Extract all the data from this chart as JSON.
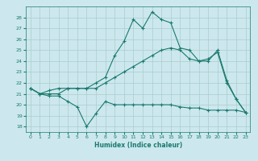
{
  "xlabel": "Humidex (Indice chaleur)",
  "background_color": "#cce8ee",
  "grid_color": "#aacccc",
  "line_color": "#1a7a6e",
  "xlim": [
    -0.5,
    23.5
  ],
  "ylim": [
    17.5,
    29.0
  ],
  "yticks": [
    18,
    19,
    20,
    21,
    22,
    23,
    24,
    25,
    26,
    27,
    28
  ],
  "xticks": [
    0,
    1,
    2,
    3,
    4,
    5,
    6,
    7,
    8,
    9,
    10,
    11,
    12,
    13,
    14,
    15,
    16,
    17,
    18,
    19,
    20,
    21,
    22,
    23
  ],
  "line1_x": [
    0,
    1,
    2,
    3,
    4,
    5,
    6,
    7,
    8,
    9,
    10,
    11,
    12,
    13,
    14,
    15,
    16,
    17,
    18,
    19,
    20,
    21,
    22,
    23
  ],
  "line1_y": [
    21.5,
    21.0,
    20.8,
    20.8,
    20.3,
    19.8,
    18.0,
    19.2,
    20.3,
    20.0,
    20.0,
    20.0,
    20.0,
    20.0,
    20.0,
    20.0,
    19.8,
    19.7,
    19.7,
    19.5,
    19.5,
    19.5,
    19.5,
    19.3
  ],
  "line2_x": [
    0,
    1,
    2,
    3,
    4,
    5,
    6,
    7,
    8,
    9,
    10,
    11,
    12,
    13,
    14,
    15,
    16,
    17,
    18,
    19,
    20,
    21,
    22,
    23
  ],
  "line2_y": [
    21.5,
    21.0,
    21.3,
    21.5,
    21.5,
    21.5,
    21.5,
    21.5,
    22.0,
    22.5,
    23.0,
    23.5,
    24.0,
    24.5,
    25.0,
    25.2,
    25.0,
    24.2,
    24.0,
    24.2,
    24.8,
    22.0,
    20.5,
    19.3
  ],
  "line3_x": [
    0,
    1,
    2,
    3,
    4,
    5,
    6,
    7,
    8,
    9,
    10,
    11,
    12,
    13,
    14,
    15,
    16,
    17,
    18,
    19,
    20,
    21,
    22,
    23
  ],
  "line3_y": [
    21.5,
    21.0,
    21.0,
    21.0,
    21.5,
    21.5,
    21.5,
    22.0,
    22.5,
    24.5,
    25.8,
    27.8,
    27.0,
    28.5,
    27.8,
    27.5,
    25.2,
    25.0,
    24.0,
    24.0,
    25.0,
    22.2,
    20.5,
    19.3
  ]
}
